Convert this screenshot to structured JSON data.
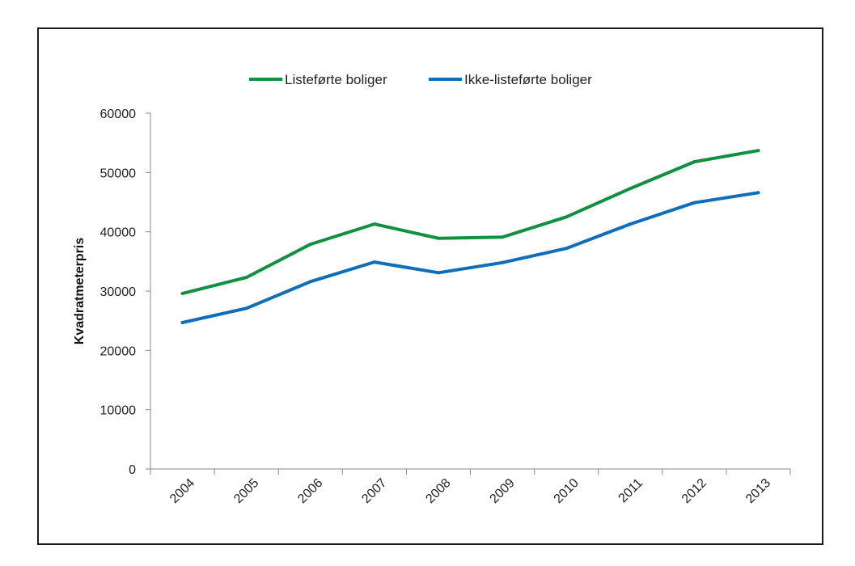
{
  "chart_data": {
    "type": "line",
    "title": "",
    "xlabel": "",
    "ylabel": "Kvadratmeterpris",
    "categories": [
      "2004",
      "2005",
      "2006",
      "2007",
      "2008",
      "2009",
      "2010",
      "2011",
      "2012",
      "2013"
    ],
    "series": [
      {
        "name": "Listeførte boliger",
        "color": "#119140",
        "values": [
          29600,
          32300,
          37900,
          41300,
          38900,
          39100,
          42500,
          47300,
          51800,
          53700
        ]
      },
      {
        "name": "Ikke-listeførte boliger",
        "color": "#0F6DB9",
        "values": [
          24700,
          27100,
          31600,
          34900,
          33100,
          34800,
          37200,
          41300,
          44900,
          46600
        ]
      }
    ],
    "ylim": [
      0,
      60000
    ],
    "yticks": [
      "0",
      "10000",
      "20000",
      "30000",
      "40000",
      "50000",
      "60000"
    ],
    "grid": false,
    "legend_position": "top-center",
    "x_tick_rotation_deg": -45
  }
}
